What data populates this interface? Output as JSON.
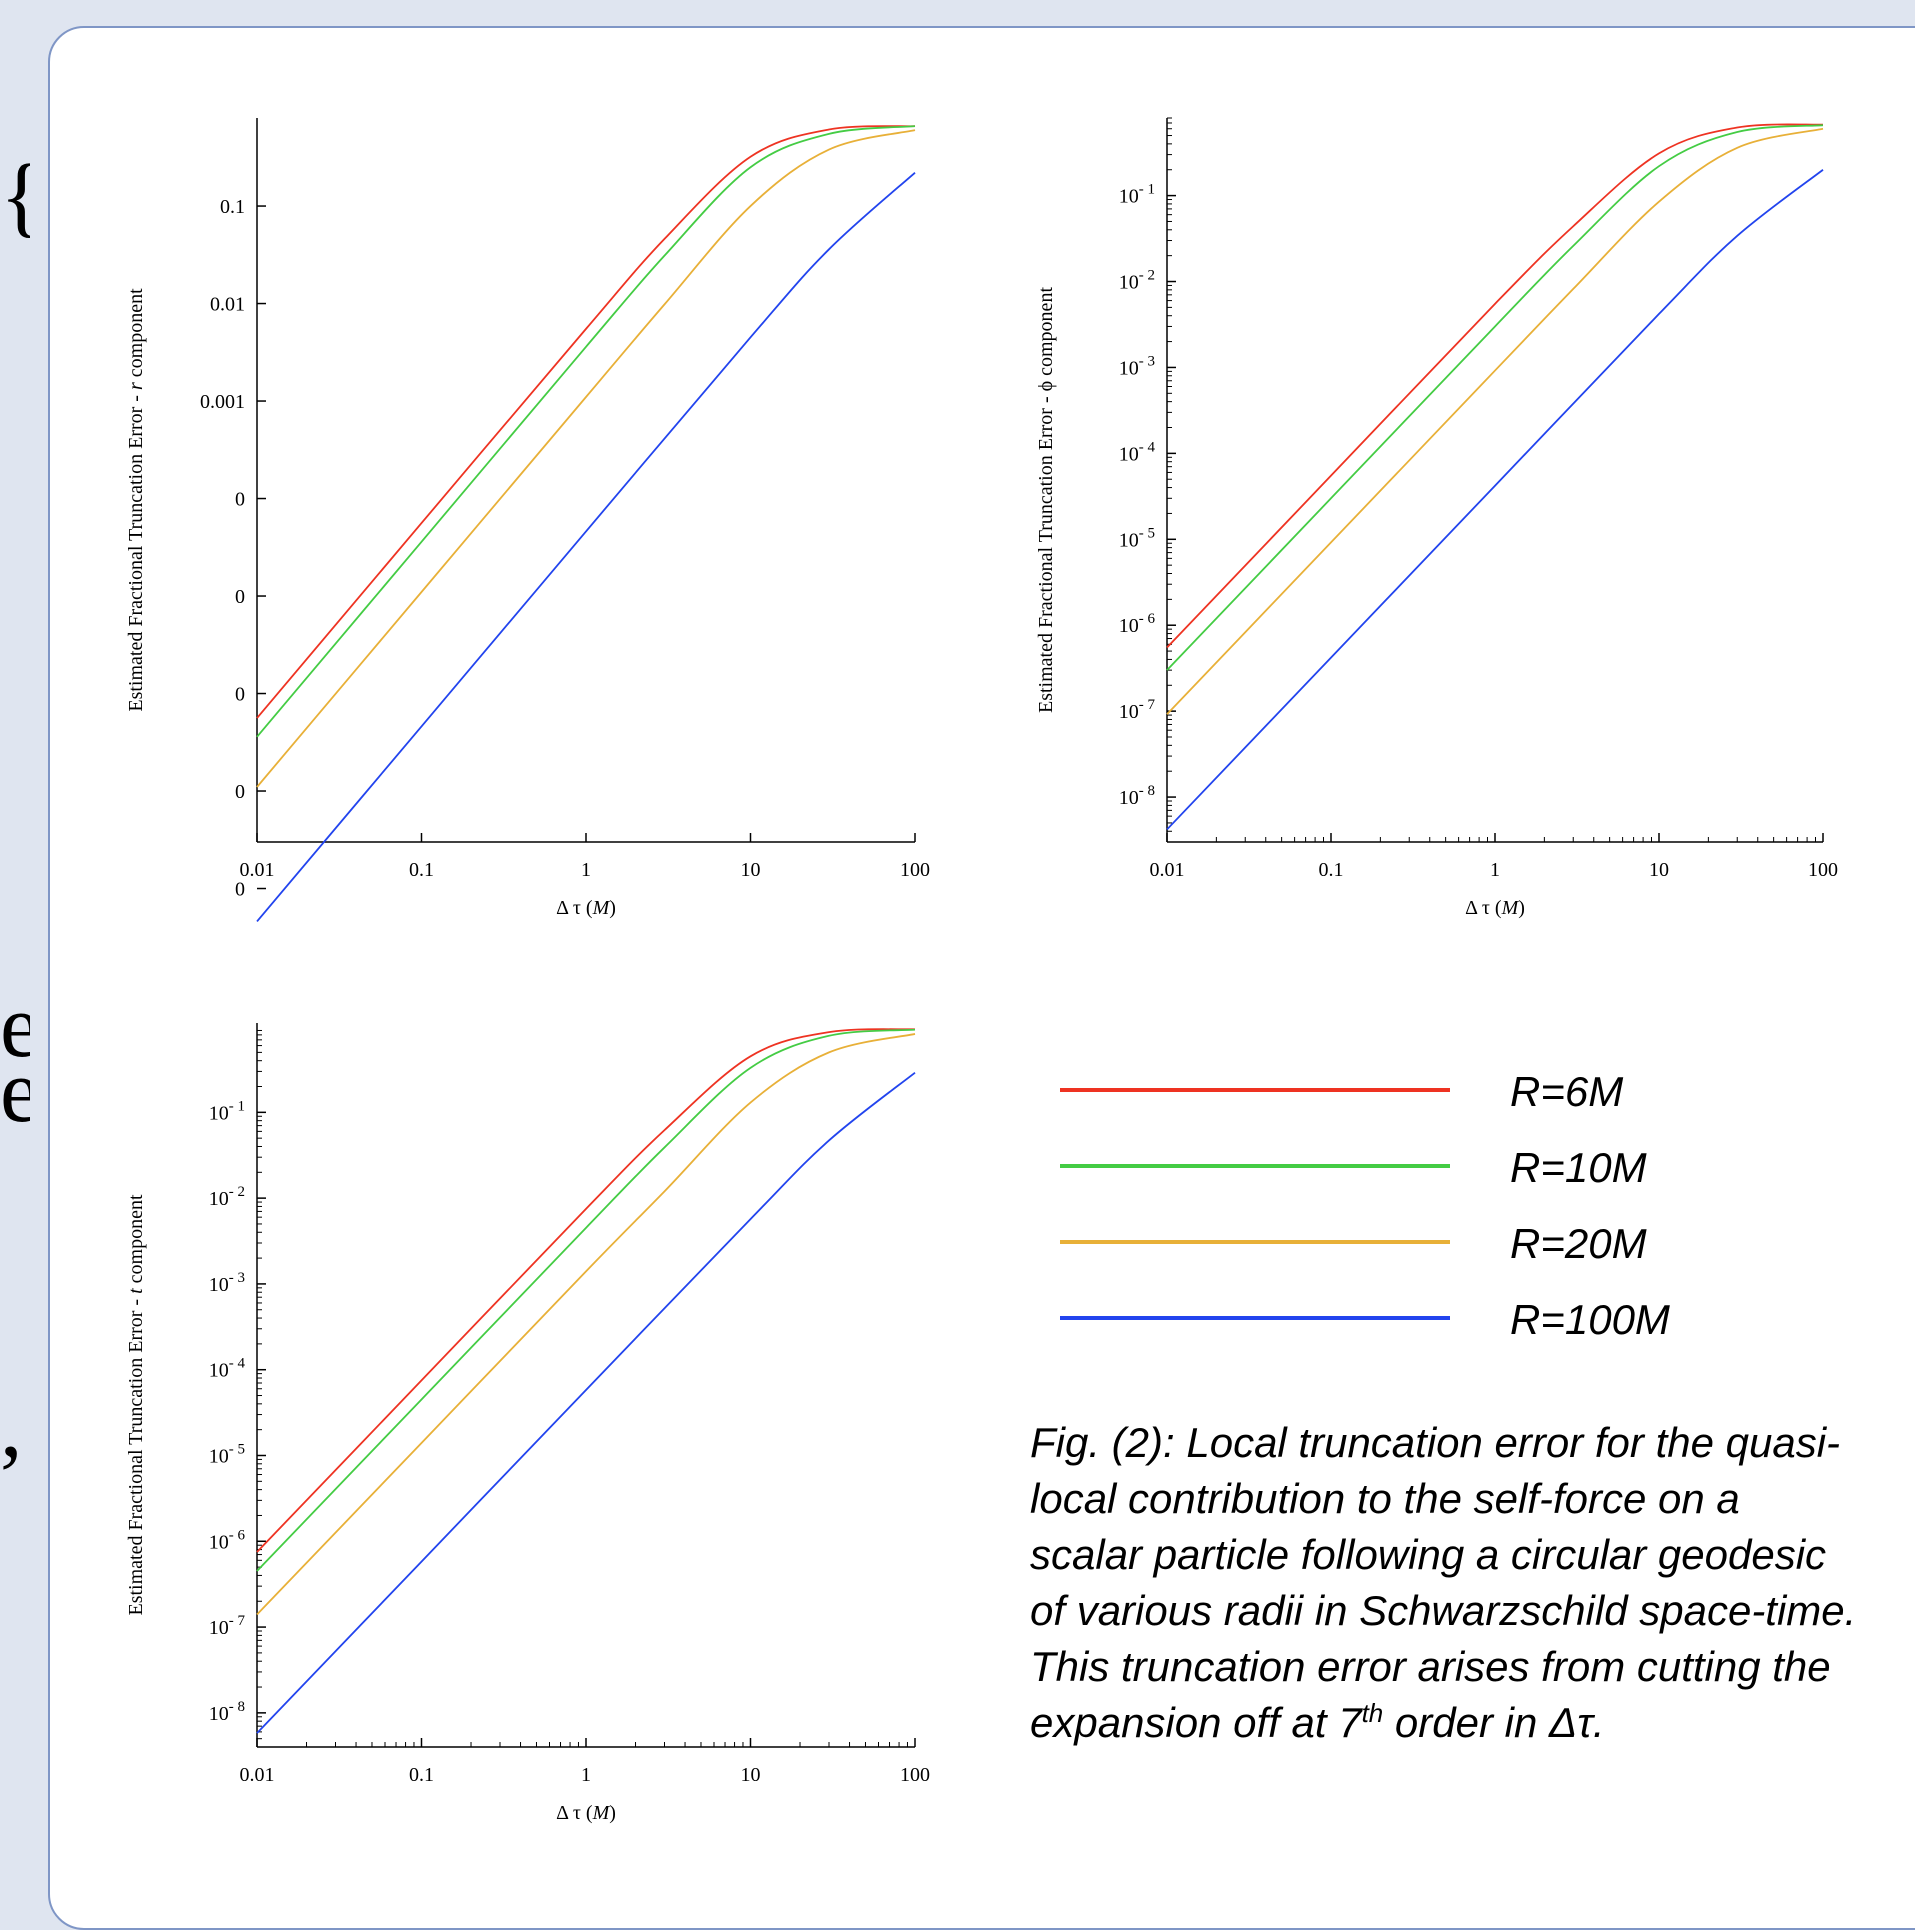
{
  "edge_glyphs": [
    "{",
    "e",
    "e",
    ","
  ],
  "legend": [
    {
      "label": "R=6M",
      "color": "#ee3322"
    },
    {
      "label": "R=10M",
      "color": "#44cc44"
    },
    {
      "label": "R=20M",
      "color": "#e8b038"
    },
    {
      "label": "R=100M",
      "color": "#2244ee"
    }
  ],
  "caption": {
    "text_before": "Fig. (2): Local truncation error for the quasi-local contribution to the self-force on a scalar particle following a circular geodesic of various radii in Schwarzschild space-time. This truncation error arises from cutting the expansion off at 7",
    "superscript": "th",
    "text_after": " order in Δτ."
  },
  "chart_data": [
    {
      "type": "line",
      "ylabel_text": "Estimated Fractional Truncation Error -  ",
      "ylabel_var": "r",
      "ylabel_suffix": " component",
      "xlabel_text": "Δ τ (",
      "xlabel_var": "M",
      "xlabel_suffix": ")",
      "xscale": "log",
      "yscale": "log",
      "xlim": [
        0.01,
        100
      ],
      "ylim": [
        3e-08,
        0.8
      ],
      "xticks": [
        {
          "v": 0.01,
          "label": "0.01"
        },
        {
          "v": 0.1,
          "label": "0.1"
        },
        {
          "v": 1,
          "label": "1"
        },
        {
          "v": 10,
          "label": "10"
        },
        {
          "v": 100,
          "label": "100"
        }
      ],
      "yticks": [
        {
          "v": 0.1,
          "label": "0.1"
        },
        {
          "v": 0.01,
          "label": "0.01"
        },
        {
          "v": 0.001,
          "label": "0.001"
        },
        {
          "v": 0.0001,
          "label": "0"
        },
        {
          "v": 1e-05,
          "label": "0"
        },
        {
          "v": 1e-06,
          "label": "0"
        },
        {
          "v": 1e-07,
          "label": "0"
        },
        {
          "v": 1e-08,
          "label": "0"
        }
      ],
      "minor_ticks": false,
      "series": [
        {
          "name": "R=6M",
          "color": "#ee3322",
          "x": [
            0.01,
            0.1,
            1,
            3,
            10,
            30,
            100
          ],
          "y": [
            5.6e-07,
            5.6e-05,
            0.0055,
            0.046,
            0.32,
            0.61,
            0.66
          ]
        },
        {
          "name": "R=10M",
          "color": "#44cc44",
          "x": [
            0.01,
            0.1,
            1,
            3,
            10,
            30,
            100
          ],
          "y": [
            3.6e-07,
            3.6e-05,
            0.0036,
            0.031,
            0.25,
            0.55,
            0.66
          ]
        },
        {
          "name": "R=20M",
          "color": "#e8b038",
          "x": [
            0.01,
            0.1,
            1,
            3,
            10,
            30,
            100
          ],
          "y": [
            1.1e-07,
            1.1e-05,
            0.0011,
            0.0098,
            0.1,
            0.38,
            0.6
          ]
        },
        {
          "name": "R=100M",
          "color": "#2244ee",
          "x": [
            0.01,
            0.1,
            1,
            10,
            30,
            100
          ],
          "y": [
            4.6e-09,
            4.6e-07,
            4.6e-05,
            0.0045,
            0.036,
            0.22
          ]
        }
      ]
    },
    {
      "type": "line",
      "ylabel_text": "Estimated Fractional Truncation Error -   ϕ component",
      "ylabel_var": "",
      "ylabel_suffix": "",
      "xlabel_text": "Δ τ (",
      "xlabel_var": "M",
      "xlabel_suffix": ")",
      "xscale": "log",
      "yscale": "log",
      "xlim": [
        0.01,
        100
      ],
      "ylim": [
        3e-09,
        0.8
      ],
      "xticks": [
        {
          "v": 0.01,
          "label": "0.01"
        },
        {
          "v": 0.1,
          "label": "0.1"
        },
        {
          "v": 1,
          "label": "1"
        },
        {
          "v": 10,
          "label": "10"
        },
        {
          "v": 100,
          "label": "100"
        }
      ],
      "yticks": [
        {
          "v": 0.1,
          "base": "10",
          "exp": "- 1"
        },
        {
          "v": 0.01,
          "base": "10",
          "exp": "- 2"
        },
        {
          "v": 0.001,
          "base": "10",
          "exp": "- 3"
        },
        {
          "v": 0.0001,
          "base": "10",
          "exp": "- 4"
        },
        {
          "v": 1e-05,
          "base": "10",
          "exp": "- 5"
        },
        {
          "v": 1e-06,
          "base": "10",
          "exp": "- 6"
        },
        {
          "v": 1e-07,
          "base": "10",
          "exp": "- 7"
        },
        {
          "v": 1e-08,
          "base": "10",
          "exp": "- 8"
        }
      ],
      "minor_ticks": true,
      "series": [
        {
          "name": "R=6M",
          "color": "#ee3322",
          "x": [
            0.01,
            0.1,
            1,
            3,
            10,
            30,
            100
          ],
          "y": [
            5.5e-07,
            5.5e-05,
            0.0055,
            0.044,
            0.31,
            0.62,
            0.67
          ]
        },
        {
          "name": "R=10M",
          "color": "#44cc44",
          "x": [
            0.01,
            0.1,
            1,
            3,
            10,
            30,
            100
          ],
          "y": [
            3e-07,
            3e-05,
            0.003,
            0.026,
            0.22,
            0.55,
            0.66
          ]
        },
        {
          "name": "R=20M",
          "color": "#e8b038",
          "x": [
            0.01,
            0.1,
            1,
            3,
            10,
            30,
            100
          ],
          "y": [
            9.2e-08,
            9.2e-06,
            0.00092,
            0.0082,
            0.085,
            0.36,
            0.6
          ]
        },
        {
          "name": "R=100M",
          "color": "#2244ee",
          "x": [
            0.01,
            0.1,
            1,
            10,
            30,
            100
          ],
          "y": [
            4.2e-09,
            4.2e-07,
            4.2e-05,
            0.0042,
            0.034,
            0.2
          ]
        }
      ]
    },
    {
      "type": "line",
      "ylabel_text": "Estimated Fractional Truncation Error -  ",
      "ylabel_var": "t",
      "ylabel_suffix": " component",
      "xlabel_text": "Δ τ (",
      "xlabel_var": "M",
      "xlabel_suffix": ")",
      "xscale": "log",
      "yscale": "log",
      "xlim": [
        0.01,
        100
      ],
      "ylim": [
        4e-09,
        1.1
      ],
      "xticks": [
        {
          "v": 0.01,
          "label": "0.01"
        },
        {
          "v": 0.1,
          "label": "0.1"
        },
        {
          "v": 1,
          "label": "1"
        },
        {
          "v": 10,
          "label": "10"
        },
        {
          "v": 100,
          "label": "100"
        }
      ],
      "yticks": [
        {
          "v": 0.1,
          "base": "10",
          "exp": "- 1"
        },
        {
          "v": 0.01,
          "base": "10",
          "exp": "- 2"
        },
        {
          "v": 0.001,
          "base": "10",
          "exp": "- 3"
        },
        {
          "v": 0.0001,
          "base": "10",
          "exp": "- 4"
        },
        {
          "v": 1e-05,
          "base": "10",
          "exp": "- 5"
        },
        {
          "v": 1e-06,
          "base": "10",
          "exp": "- 6"
        },
        {
          "v": 1e-07,
          "base": "10",
          "exp": "- 7"
        },
        {
          "v": 1e-08,
          "base": "10",
          "exp": "- 8"
        }
      ],
      "minor_ticks": true,
      "series": [
        {
          "name": "R=6M",
          "color": "#ee3322",
          "x": [
            0.01,
            0.1,
            1,
            3,
            10,
            30,
            100
          ],
          "y": [
            7.5e-07,
            7.5e-05,
            0.0075,
            0.062,
            0.45,
            0.86,
            0.93
          ]
        },
        {
          "name": "R=10M",
          "color": "#44cc44",
          "x": [
            0.01,
            0.1,
            1,
            3,
            10,
            30,
            100
          ],
          "y": [
            4.5e-07,
            4.5e-05,
            0.0045,
            0.039,
            0.33,
            0.78,
            0.92
          ]
        },
        {
          "name": "R=20M",
          "color": "#e8b038",
          "x": [
            0.01,
            0.1,
            1,
            3,
            10,
            30,
            100
          ],
          "y": [
            1.4e-07,
            1.4e-05,
            0.0014,
            0.012,
            0.13,
            0.5,
            0.82
          ]
        },
        {
          "name": "R=100M",
          "color": "#2244ee",
          "x": [
            0.01,
            0.1,
            1,
            10,
            30,
            100
          ],
          "y": [
            5.8e-09,
            5.8e-07,
            5.8e-05,
            0.0057,
            0.047,
            0.29
          ]
        }
      ]
    }
  ]
}
